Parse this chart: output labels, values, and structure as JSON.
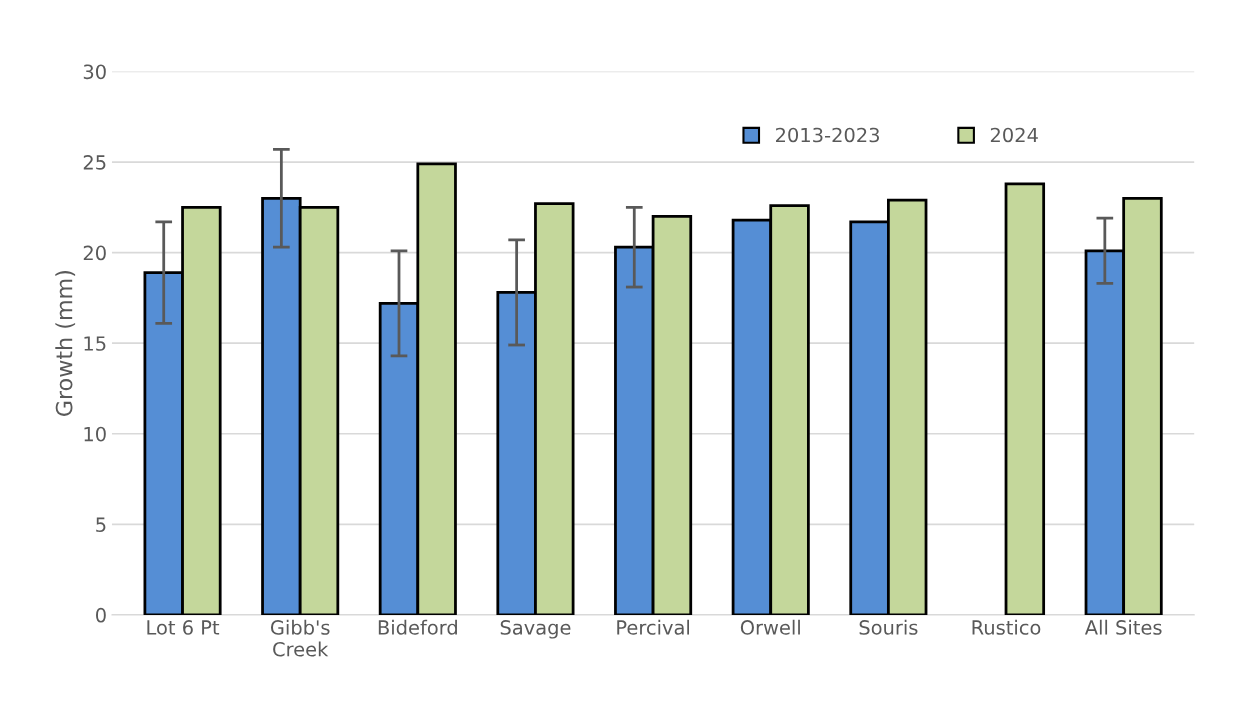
{
  "chart_data": {
    "type": "bar",
    "ylabel": "Growth (mm)",
    "categories": [
      "Lot 6 Pt",
      "Gibb's\nCreek",
      "Bideford",
      "Savage",
      "Percival",
      "Orwell",
      "Souris",
      "Rustico",
      "All Sites"
    ],
    "series": [
      {
        "name": "2013-2023",
        "color": "#558ed5",
        "values": [
          18.9,
          23.0,
          17.2,
          17.8,
          20.3,
          21.8,
          21.7,
          null,
          20.1
        ],
        "errors": [
          2.8,
          2.7,
          2.9,
          2.9,
          2.2,
          null,
          null,
          null,
          1.8
        ]
      },
      {
        "name": "2024",
        "color": "#c4d79b",
        "values": [
          22.5,
          22.5,
          24.9,
          22.7,
          22.0,
          22.6,
          22.9,
          23.8,
          23.0
        ]
      }
    ],
    "ylim": [
      0,
      30
    ],
    "yticks": [
      0,
      5,
      10,
      15,
      20,
      25,
      30
    ],
    "grid": "y",
    "legend": "top right"
  }
}
